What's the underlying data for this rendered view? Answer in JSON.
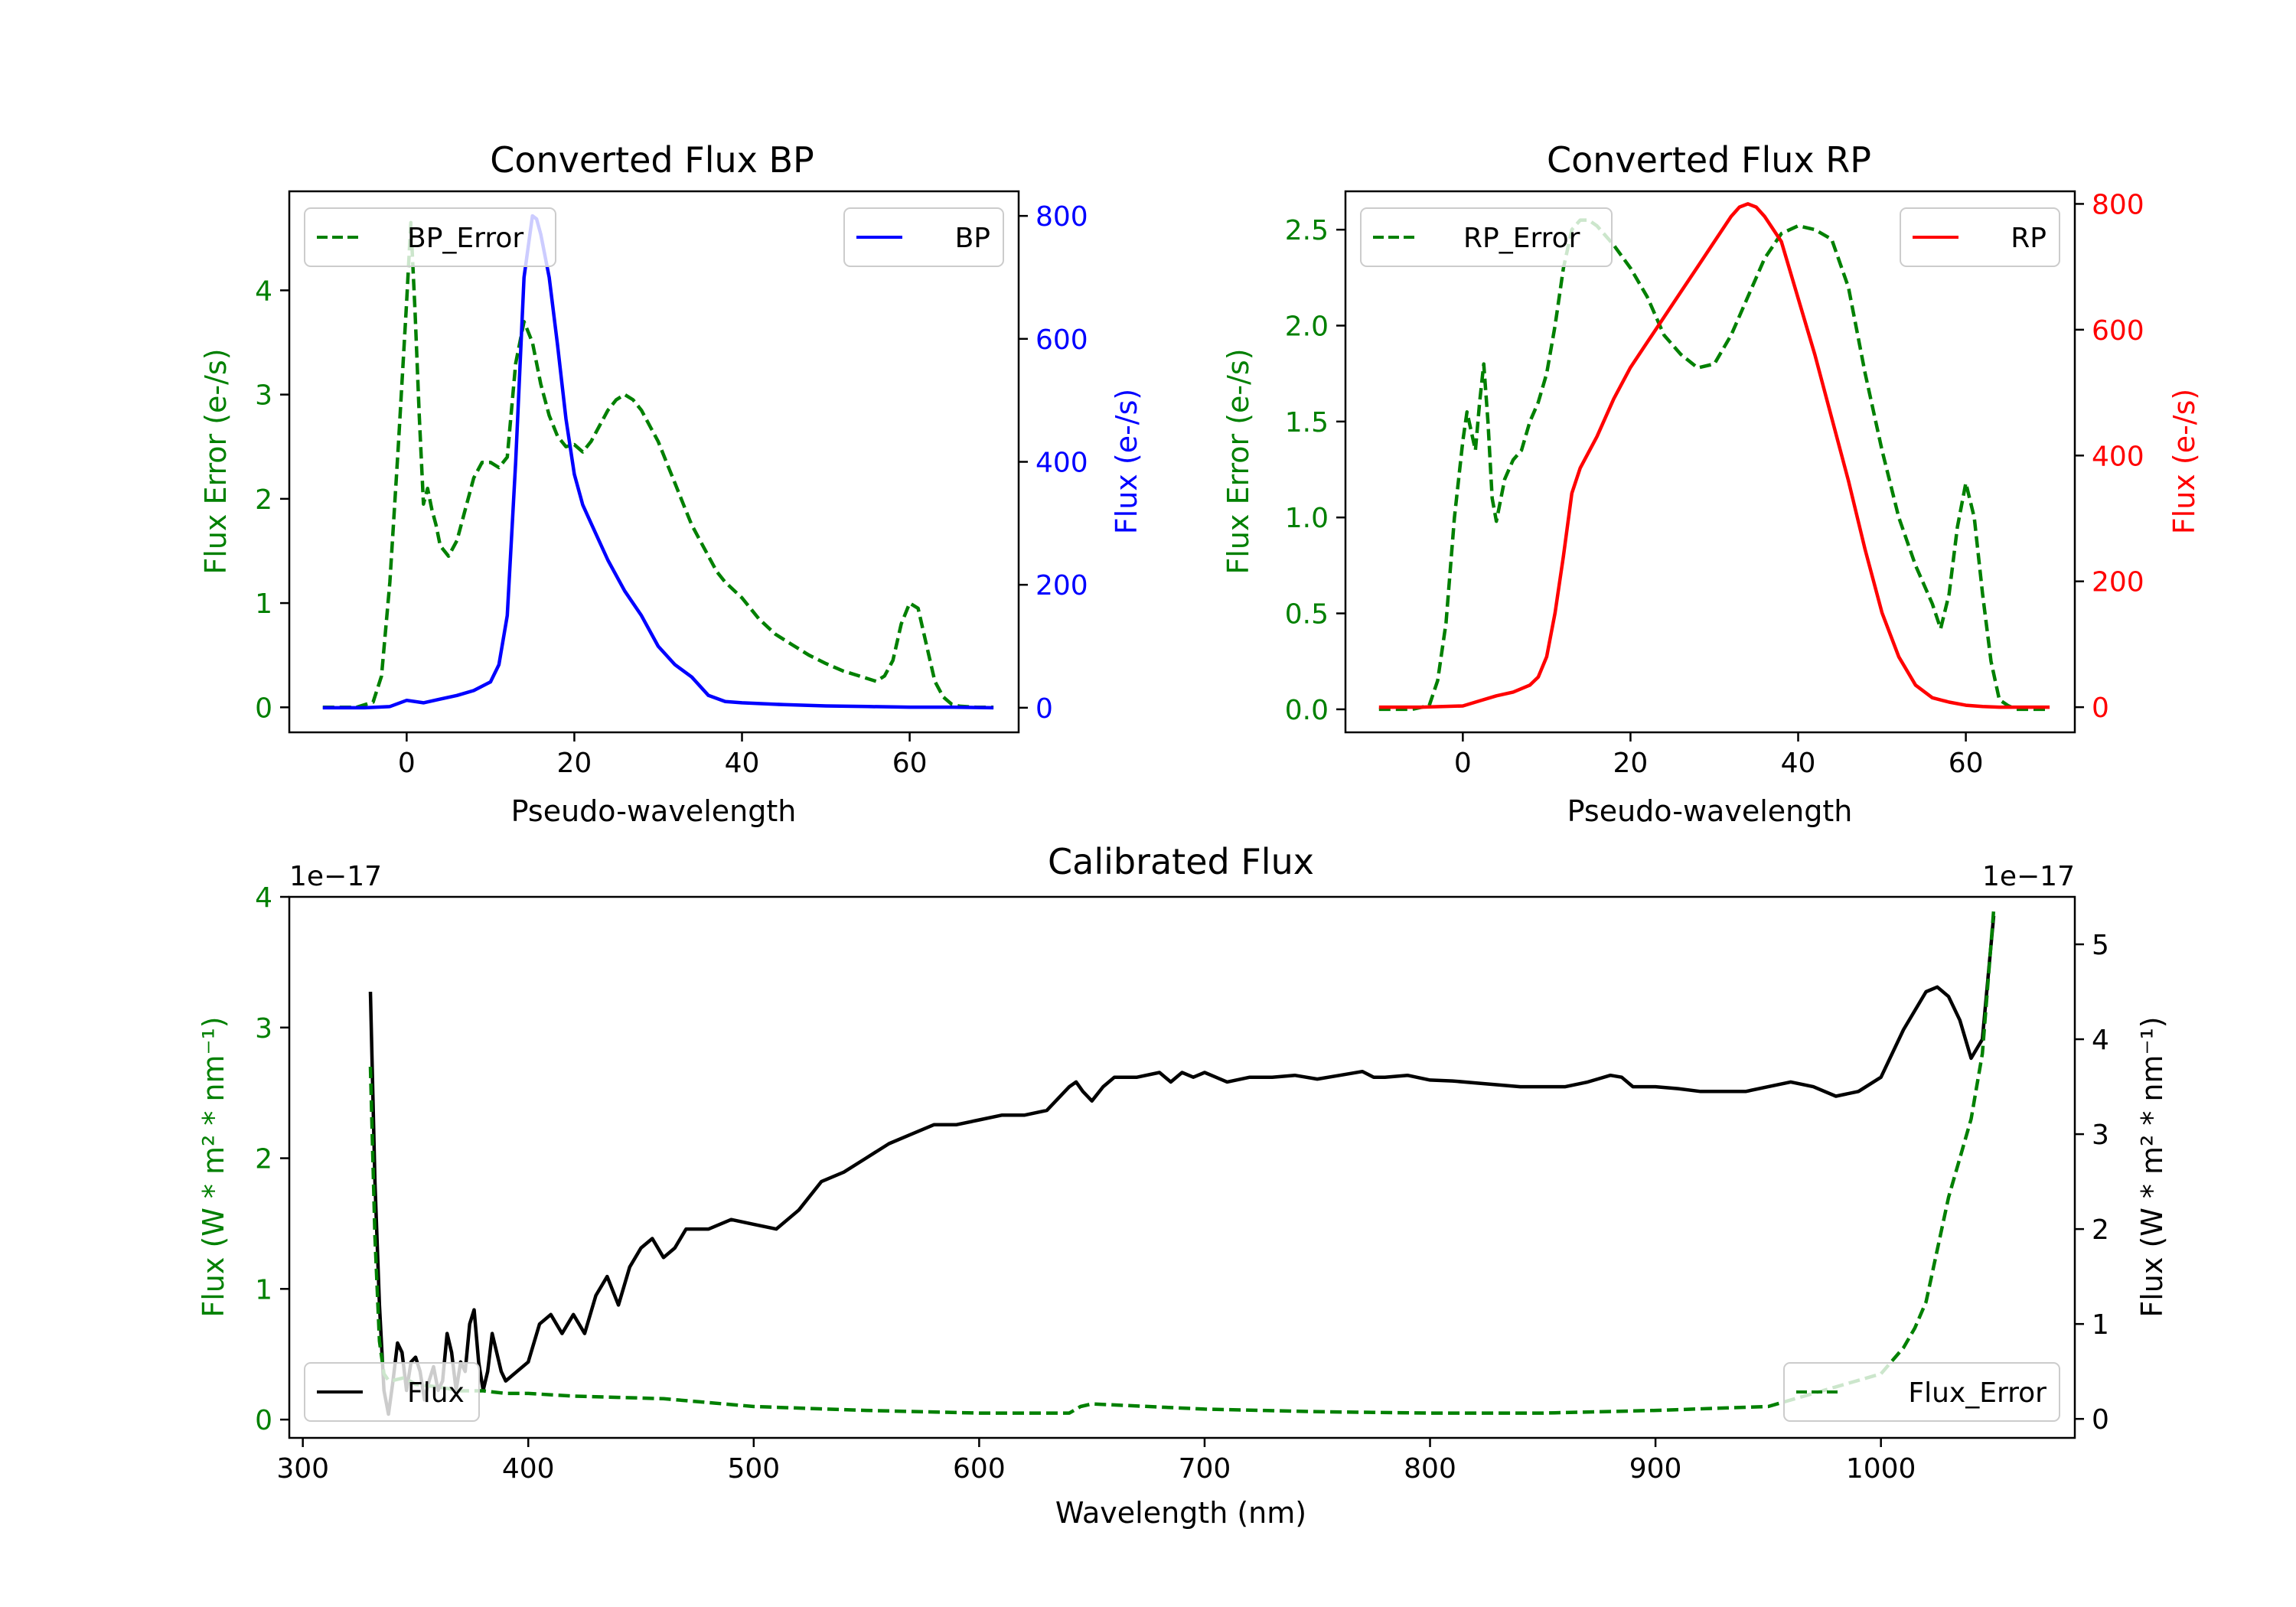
{
  "figure": {
    "background": "#ffffff"
  },
  "chart_data": [
    {
      "id": "bp",
      "type": "line",
      "title": "Converted Flux BP",
      "xlabel": "Pseudo-wavelength",
      "ylabel_left": "Flux Error (e-/s)",
      "ylabel_right": "Flux (e-/s)",
      "left_color": "#008000",
      "right_color": "#0000ff",
      "xlim": [
        -14,
        73
      ],
      "ylim_left": [
        -0.24,
        4.95
      ],
      "ylim_right": [
        -40,
        840
      ],
      "xticks": [
        0,
        20,
        40,
        60
      ],
      "yticks_left": [
        0,
        1,
        2,
        3,
        4
      ],
      "yticks_right": [
        0,
        200,
        400,
        600,
        800
      ],
      "legend_left": {
        "label": "BP_Error",
        "position": "upper left"
      },
      "legend_right": {
        "label": "BP",
        "position": "upper right"
      },
      "series": [
        {
          "name": "BP_Error",
          "axis": "left",
          "color": "#008000",
          "dash": true,
          "x": [
            -10,
            -6,
            -4,
            -3,
            -2,
            -1,
            0,
            0.5,
            1,
            1.5,
            2,
            2.5,
            3,
            3.5,
            4,
            5,
            6,
            7,
            8,
            9,
            10,
            11,
            12,
            13,
            14,
            15,
            16,
            17,
            18,
            19,
            20,
            21,
            22,
            23,
            24,
            25,
            26,
            27,
            28,
            29,
            30,
            31,
            32,
            33,
            34,
            35,
            36,
            37,
            38,
            40,
            42,
            44,
            46,
            48,
            50,
            52,
            54,
            56,
            57,
            58,
            59,
            60,
            61,
            62,
            63,
            64,
            65,
            66,
            68,
            70
          ],
          "y": [
            0,
            0,
            0.05,
            0.3,
            1.2,
            2.5,
            3.9,
            4.65,
            3.8,
            2.8,
            1.95,
            2.1,
            1.9,
            1.75,
            1.55,
            1.45,
            1.6,
            1.9,
            2.2,
            2.35,
            2.35,
            2.3,
            2.4,
            3.3,
            3.7,
            3.5,
            3.1,
            2.8,
            2.6,
            2.5,
            2.52,
            2.45,
            2.55,
            2.7,
            2.85,
            2.95,
            3.0,
            2.95,
            2.85,
            2.7,
            2.55,
            2.35,
            2.15,
            1.95,
            1.75,
            1.6,
            1.45,
            1.3,
            1.2,
            1.05,
            0.85,
            0.7,
            0.6,
            0.5,
            0.42,
            0.35,
            0.3,
            0.25,
            0.3,
            0.45,
            0.8,
            1.0,
            0.95,
            0.6,
            0.25,
            0.1,
            0.03,
            0.01,
            0,
            0
          ]
        },
        {
          "name": "BP",
          "axis": "right",
          "color": "#0000ff",
          "dash": false,
          "x": [
            -10,
            -5,
            -2,
            0,
            2,
            4,
            6,
            8,
            10,
            11,
            12,
            13,
            14,
            15,
            15.5,
            16,
            17,
            18,
            19,
            20,
            21,
            22,
            24,
            26,
            28,
            30,
            32,
            34,
            36,
            38,
            40,
            45,
            50,
            55,
            60,
            65,
            70
          ],
          "y": [
            0,
            0,
            2,
            12,
            8,
            14,
            20,
            28,
            42,
            70,
            150,
            400,
            700,
            800,
            795,
            770,
            700,
            590,
            470,
            380,
            330,
            300,
            240,
            190,
            150,
            100,
            70,
            50,
            20,
            10,
            8,
            5,
            3,
            2,
            1,
            1,
            0
          ]
        }
      ]
    },
    {
      "id": "rp",
      "type": "line",
      "title": "Converted Flux RP",
      "xlabel": "Pseudo-wavelength",
      "ylabel_left": "Flux Error (e-/s)",
      "ylabel_right": "Flux (e-/s)",
      "left_color": "#008000",
      "right_color": "#ff0000",
      "xlim": [
        -14,
        73
      ],
      "ylim_left": [
        -0.12,
        2.7
      ],
      "ylim_right": [
        -40,
        820
      ],
      "xticks": [
        0,
        20,
        40,
        60
      ],
      "yticks_left": [
        0.0,
        0.5,
        1.0,
        1.5,
        2.0,
        2.5
      ],
      "yticks_right": [
        0,
        200,
        400,
        600,
        800
      ],
      "legend_left": {
        "label": "RP_Error",
        "position": "upper left"
      },
      "legend_right": {
        "label": "RP",
        "position": "upper right"
      },
      "series": [
        {
          "name": "RP_Error",
          "axis": "left",
          "color": "#008000",
          "dash": true,
          "x": [
            -10,
            -6,
            -4,
            -3,
            -2,
            -1,
            0,
            0.5,
            1,
            1.5,
            2,
            2.5,
            3,
            3.5,
            4,
            5,
            6,
            7,
            8,
            9,
            10,
            11,
            12,
            13,
            14,
            15,
            16,
            18,
            20,
            22,
            24,
            26,
            28,
            30,
            32,
            34,
            36,
            38,
            40,
            42,
            44,
            46,
            48,
            50,
            52,
            54,
            56,
            57,
            58,
            59,
            60,
            61,
            62,
            63,
            64,
            65,
            66,
            70
          ],
          "y": [
            0,
            0,
            0.02,
            0.15,
            0.45,
            1.0,
            1.4,
            1.55,
            1.45,
            1.35,
            1.6,
            1.8,
            1.5,
            1.1,
            0.98,
            1.2,
            1.3,
            1.35,
            1.5,
            1.6,
            1.75,
            2.0,
            2.3,
            2.5,
            2.55,
            2.55,
            2.52,
            2.42,
            2.3,
            2.15,
            1.95,
            1.85,
            1.78,
            1.8,
            1.95,
            2.15,
            2.35,
            2.48,
            2.52,
            2.5,
            2.45,
            2.2,
            1.75,
            1.35,
            1.0,
            0.75,
            0.55,
            0.42,
            0.6,
            0.95,
            1.18,
            1.0,
            0.6,
            0.25,
            0.05,
            0.02,
            0,
            0
          ]
        },
        {
          "name": "RP",
          "axis": "right",
          "color": "#ff0000",
          "dash": false,
          "x": [
            -10,
            -5,
            0,
            2,
            4,
            6,
            8,
            9,
            10,
            11,
            12,
            13,
            14,
            16,
            18,
            20,
            22,
            24,
            26,
            28,
            30,
            32,
            33,
            34,
            35,
            36,
            38,
            40,
            42,
            44,
            46,
            48,
            50,
            52,
            54,
            56,
            58,
            60,
            62,
            64,
            66,
            70
          ],
          "y": [
            0,
            0,
            2,
            10,
            18,
            24,
            35,
            48,
            80,
            150,
            240,
            340,
            380,
            430,
            490,
            540,
            580,
            620,
            660,
            700,
            740,
            780,
            795,
            800,
            795,
            780,
            740,
            650,
            560,
            460,
            360,
            250,
            150,
            80,
            35,
            15,
            8,
            3,
            1,
            0,
            0,
            0
          ]
        }
      ]
    },
    {
      "id": "cal",
      "type": "line",
      "title": "Calibrated Flux",
      "xlabel": "Wavelength (nm)",
      "ylabel_left": "Flux (W * m² * nm⁻¹)",
      "ylabel_right": "Flux (W * m² * nm⁻¹)",
      "offset_left": "1e−17",
      "offset_right": "1e−17",
      "left_color": "#008000",
      "right_color": "#000000",
      "xlim": [
        294,
        1086
      ],
      "ylim_left": [
        -0.14,
        4.0
      ],
      "ylim_right": [
        -0.2,
        5.5
      ],
      "xticks": [
        300,
        400,
        500,
        600,
        700,
        800,
        900,
        1000
      ],
      "yticks_left": [
        0,
        1,
        2,
        3,
        4
      ],
      "yticks_right": [
        0,
        1,
        2,
        3,
        4,
        5
      ],
      "legend_left": {
        "label": "Flux",
        "position": "lower left"
      },
      "legend_right": {
        "label": "Flux_Error",
        "position": "lower right"
      },
      "series": [
        {
          "name": "Flux",
          "axis": "right",
          "color": "#000000",
          "dash": false,
          "x": [
            330,
            332,
            334,
            336,
            338,
            340,
            342,
            344,
            346,
            348,
            350,
            352,
            354,
            356,
            358,
            360,
            362,
            364,
            366,
            368,
            370,
            372,
            374,
            376,
            378,
            380,
            382,
            384,
            386,
            388,
            390,
            395,
            400,
            405,
            410,
            415,
            420,
            425,
            430,
            435,
            440,
            445,
            450,
            455,
            460,
            465,
            470,
            480,
            490,
            500,
            510,
            520,
            530,
            540,
            550,
            560,
            570,
            580,
            590,
            600,
            610,
            620,
            630,
            640,
            643,
            646,
            650,
            655,
            660,
            670,
            680,
            685,
            690,
            695,
            700,
            705,
            710,
            720,
            730,
            740,
            750,
            760,
            770,
            775,
            780,
            790,
            800,
            810,
            820,
            830,
            840,
            850,
            860,
            870,
            880,
            885,
            890,
            900,
            910,
            920,
            930,
            940,
            950,
            960,
            970,
            980,
            990,
            1000,
            1010,
            1020,
            1025,
            1030,
            1035,
            1040,
            1045,
            1050
          ],
          "y": [
            4.5,
            2.5,
            1.2,
            0.3,
            0.05,
            0.4,
            0.8,
            0.7,
            0.3,
            0.6,
            0.65,
            0.5,
            0.2,
            0.4,
            0.55,
            0.3,
            0.4,
            0.9,
            0.7,
            0.3,
            0.6,
            0.5,
            1.0,
            1.15,
            0.6,
            0.3,
            0.5,
            0.9,
            0.7,
            0.5,
            0.4,
            0.5,
            0.6,
            1.0,
            1.1,
            0.9,
            1.1,
            0.9,
            1.3,
            1.5,
            1.2,
            1.6,
            1.8,
            1.9,
            1.7,
            1.8,
            2.0,
            2.0,
            2.1,
            2.05,
            2.0,
            2.2,
            2.5,
            2.6,
            2.75,
            2.9,
            3.0,
            3.1,
            3.1,
            3.15,
            3.2,
            3.2,
            3.25,
            3.5,
            3.55,
            3.45,
            3.35,
            3.5,
            3.6,
            3.6,
            3.65,
            3.55,
            3.65,
            3.6,
            3.65,
            3.6,
            3.55,
            3.6,
            3.6,
            3.62,
            3.58,
            3.62,
            3.66,
            3.6,
            3.6,
            3.62,
            3.57,
            3.56,
            3.54,
            3.52,
            3.5,
            3.5,
            3.5,
            3.55,
            3.62,
            3.6,
            3.5,
            3.5,
            3.48,
            3.45,
            3.45,
            3.45,
            3.5,
            3.55,
            3.5,
            3.4,
            3.45,
            3.6,
            4.1,
            4.5,
            4.55,
            4.45,
            4.2,
            3.8,
            4.0,
            5.3
          ]
        },
        {
          "name": "Flux_Error",
          "axis": "left",
          "color": "#008000",
          "dash": true,
          "x": [
            330,
            332,
            334,
            336,
            338,
            340,
            345,
            350,
            360,
            370,
            380,
            390,
            400,
            420,
            440,
            460,
            480,
            500,
            550,
            600,
            640,
            645,
            650,
            700,
            750,
            800,
            850,
            900,
            950,
            1000,
            1005,
            1010,
            1015,
            1020,
            1025,
            1030,
            1035,
            1040,
            1045,
            1050
          ],
          "y": [
            2.7,
            1.4,
            0.6,
            0.35,
            0.3,
            0.3,
            0.32,
            0.27,
            0.25,
            0.22,
            0.22,
            0.2,
            0.2,
            0.18,
            0.17,
            0.16,
            0.13,
            0.1,
            0.07,
            0.05,
            0.05,
            0.1,
            0.12,
            0.08,
            0.06,
            0.05,
            0.05,
            0.07,
            0.1,
            0.35,
            0.45,
            0.55,
            0.7,
            0.9,
            1.3,
            1.7,
            2.0,
            2.3,
            2.8,
            3.9
          ]
        }
      ]
    }
  ]
}
